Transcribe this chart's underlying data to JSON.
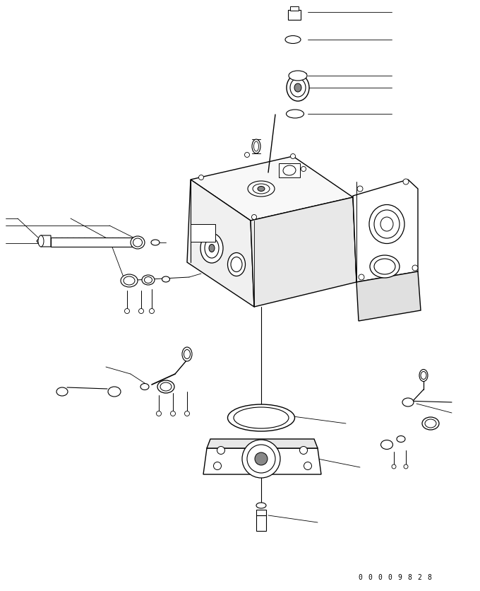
{
  "bg_color": "#ffffff",
  "lc": "#000000",
  "fig_w": 6.8,
  "fig_h": 8.37,
  "dpi": 100,
  "watermark": "00009828"
}
